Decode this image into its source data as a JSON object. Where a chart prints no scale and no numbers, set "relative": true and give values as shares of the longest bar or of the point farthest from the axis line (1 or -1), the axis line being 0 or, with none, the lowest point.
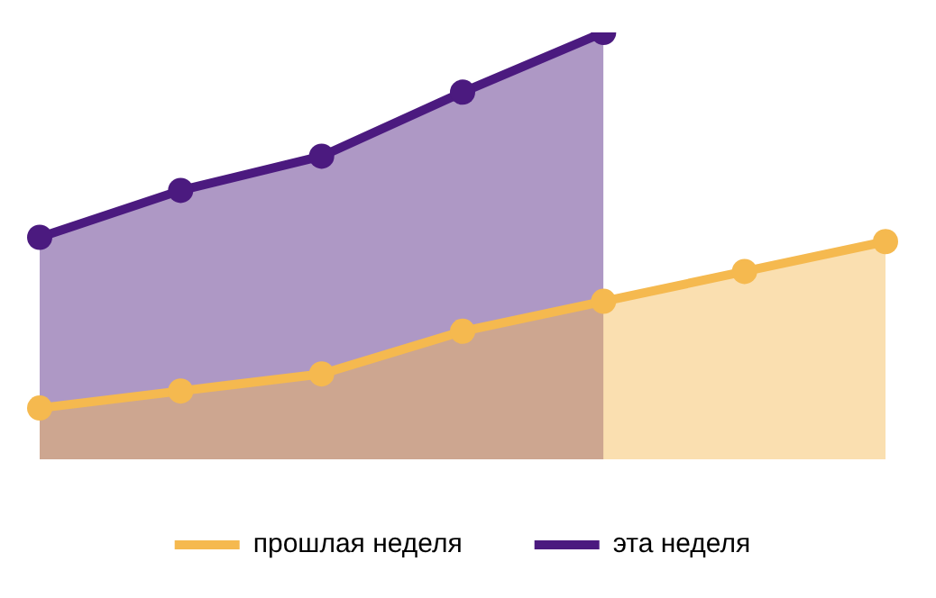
{
  "chart_data": {
    "type": "area",
    "relative": true,
    "categories": [
      null,
      null,
      null,
      null,
      null,
      null,
      null
    ],
    "series": [
      {
        "name": "прошлая неделя",
        "color": "#f5b94f",
        "values": [
          0.12,
          0.16,
          0.2,
          0.3,
          0.37,
          0.44,
          0.51
        ]
      },
      {
        "name": "эта неделя",
        "color": "#4b1a7f",
        "values": [
          0.52,
          0.63,
          0.71,
          0.86,
          1,
          null,
          null
        ]
      }
    ],
    "legend": "bottom",
    "marker": "circle",
    "grid": false
  }
}
